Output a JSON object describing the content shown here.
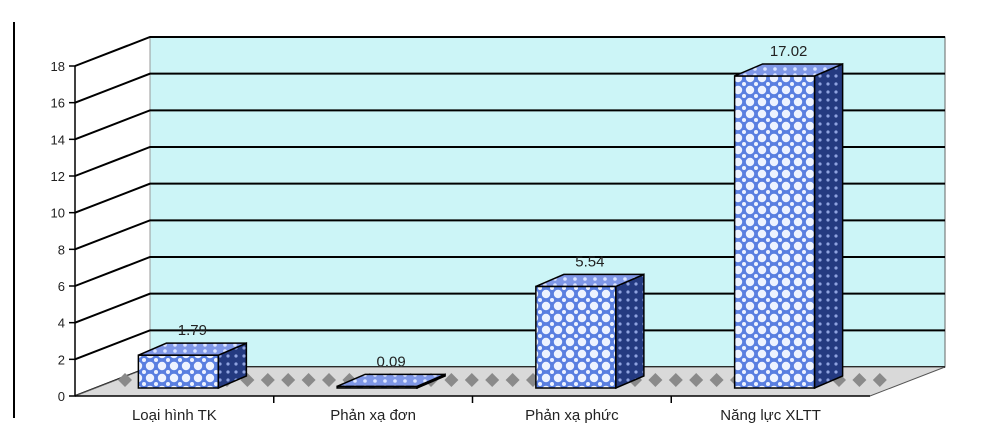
{
  "chart_data": {
    "type": "bar",
    "categories": [
      "Loại hình TK",
      "Phản xạ đơn",
      "Phản xạ phức",
      "Năng lực XLTT"
    ],
    "values": [
      1.79,
      0.09,
      5.54,
      17.02
    ],
    "data_labels": [
      "1.79",
      "0.09",
      "5.54",
      "17.02"
    ],
    "title": "",
    "xlabel": "",
    "ylabel": "",
    "ylim": [
      0,
      18
    ],
    "yticks": [
      0,
      2,
      4,
      6,
      8,
      10,
      12,
      14,
      16,
      18
    ],
    "grid": true,
    "legend": "none",
    "style": "3d",
    "colors": {
      "wall": "#ccf5f7",
      "floor": "#8a8a8a",
      "bar_front": "#5a7fe0",
      "bar_dots": "#eef3ff",
      "bar_top": "#7f97e6",
      "bar_side": "#243a80",
      "grid": "#000000"
    }
  }
}
